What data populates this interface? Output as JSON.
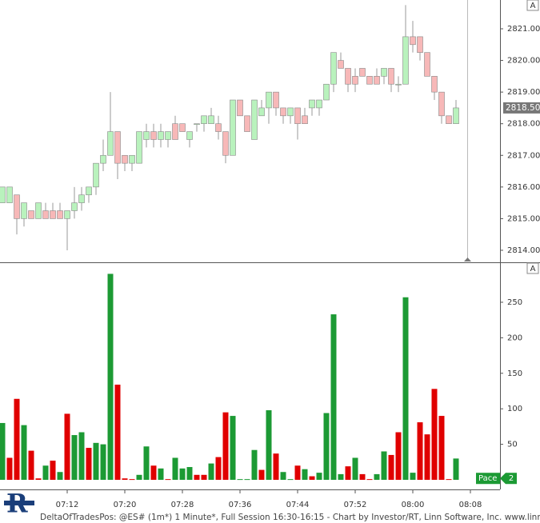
{
  "chart_data": [
    {
      "type": "candlestick",
      "ohlc": [
        [
          2815.5,
          2816.0,
          2815.5,
          2816.0
        ],
        [
          2815.5,
          2816.0,
          2815.5,
          2816.0
        ],
        [
          2815.75,
          2815.75,
          2814.5,
          2815.0
        ],
        [
          2815.0,
          2815.5,
          2814.75,
          2815.5
        ],
        [
          2815.25,
          2815.25,
          2815.0,
          2815.0
        ],
        [
          2815.0,
          2815.5,
          2815.0,
          2815.5
        ],
        [
          2815.25,
          2815.5,
          2815.0,
          2815.0
        ],
        [
          2815.25,
          2815.5,
          2815.0,
          2815.0
        ],
        [
          2815.25,
          2815.5,
          2815.0,
          2815.0
        ],
        [
          2815.0,
          2815.25,
          2814.0,
          2815.25
        ],
        [
          2815.25,
          2816.0,
          2815.0,
          2815.5
        ],
        [
          2815.5,
          2816.0,
          2815.25,
          2815.75
        ],
        [
          2815.75,
          2816.0,
          2815.5,
          2816.0
        ],
        [
          2816.0,
          2816.75,
          2815.75,
          2816.75
        ],
        [
          2816.75,
          2817.5,
          2816.5,
          2817.0
        ],
        [
          2817.0,
          2819.0,
          2817.0,
          2817.75
        ],
        [
          2817.75,
          2817.75,
          2816.25,
          2816.75
        ],
        [
          2817.0,
          2817.0,
          2816.5,
          2816.75
        ],
        [
          2816.75,
          2817.0,
          2816.5,
          2817.0
        ],
        [
          2816.75,
          2817.75,
          2816.75,
          2817.75
        ],
        [
          2817.5,
          2818.0,
          2817.25,
          2817.75
        ],
        [
          2817.75,
          2818.0,
          2817.25,
          2817.5
        ],
        [
          2817.5,
          2818.0,
          2817.25,
          2817.75
        ],
        [
          2817.5,
          2817.75,
          2817.25,
          2817.75
        ],
        [
          2818.0,
          2818.25,
          2817.5,
          2817.5
        ],
        [
          2818.0,
          2818.0,
          2817.75,
          2817.75
        ],
        [
          2817.5,
          2817.75,
          2817.25,
          2817.75
        ],
        [
          2818.0,
          2818.0,
          2817.75,
          2818.0
        ],
        [
          2818.0,
          2818.25,
          2817.75,
          2818.25
        ],
        [
          2818.0,
          2818.5,
          2818.0,
          2818.25
        ],
        [
          2818.0,
          2818.25,
          2817.5,
          2817.75
        ],
        [
          2817.75,
          2817.75,
          2816.75,
          2817.0
        ],
        [
          2817.0,
          2818.75,
          2817.0,
          2818.75
        ],
        [
          2818.75,
          2818.75,
          2818.25,
          2818.25
        ],
        [
          2818.25,
          2818.25,
          2817.75,
          2817.75
        ],
        [
          2817.5,
          2818.75,
          2817.5,
          2818.75
        ],
        [
          2818.25,
          2818.75,
          2818.25,
          2818.5
        ],
        [
          2818.5,
          2819.0,
          2818.0,
          2819.0
        ],
        [
          2819.0,
          2819.0,
          2818.25,
          2818.5
        ],
        [
          2818.5,
          2818.5,
          2818.0,
          2818.25
        ],
        [
          2818.25,
          2818.5,
          2818.0,
          2818.5
        ],
        [
          2818.5,
          2818.5,
          2817.5,
          2818.0
        ],
        [
          2818.25,
          2818.5,
          2818.0,
          2818.0
        ],
        [
          2818.5,
          2818.75,
          2818.25,
          2818.75
        ],
        [
          2818.5,
          2818.75,
          2818.25,
          2818.75
        ],
        [
          2818.75,
          2819.25,
          2818.75,
          2819.25
        ],
        [
          2819.25,
          2820.25,
          2819.0,
          2820.25
        ],
        [
          2820.0,
          2820.25,
          2819.75,
          2819.75
        ],
        [
          2819.75,
          2819.75,
          2819.0,
          2819.25
        ],
        [
          2819.5,
          2819.75,
          2819.0,
          2819.25
        ],
        [
          2819.75,
          2819.75,
          2819.5,
          2819.5
        ],
        [
          2819.5,
          2819.5,
          2819.25,
          2819.25
        ],
        [
          2819.5,
          2819.75,
          2819.25,
          2819.25
        ],
        [
          2819.5,
          2819.75,
          2819.25,
          2819.75
        ],
        [
          2819.75,
          2819.75,
          2819.0,
          2819.25
        ],
        [
          2819.25,
          2819.5,
          2819.0,
          2819.25
        ],
        [
          2819.25,
          2821.75,
          2819.25,
          2820.75
        ],
        [
          2820.75,
          2821.25,
          2820.25,
          2820.5
        ],
        [
          2820.75,
          2820.75,
          2820.0,
          2820.25
        ],
        [
          2820.25,
          2820.25,
          2819.5,
          2819.5
        ],
        [
          2819.5,
          2819.5,
          2818.75,
          2819.0
        ],
        [
          2819.0,
          2819.0,
          2818.0,
          2818.25
        ],
        [
          2818.25,
          2818.25,
          2818.0,
          2818.0
        ],
        [
          2818.0,
          2818.75,
          2818.0,
          2818.5
        ],
        null,
        null
      ],
      "up_color": "#b9f2bd",
      "down_color": "#f7b8b8",
      "wick_color": "#999999",
      "ylim": [
        2813.62,
        2821.91
      ],
      "yticks": [
        {
          "value": 2814,
          "label": "2814.00"
        },
        {
          "value": 2815,
          "label": "2815.00"
        },
        {
          "value": 2816,
          "label": "2816.00"
        },
        {
          "value": 2817,
          "label": "2817.00"
        },
        {
          "value": 2818,
          "label": "2818.00"
        },
        {
          "value": 2819,
          "label": "2819.00"
        },
        {
          "value": 2820,
          "label": "2820.00"
        },
        {
          "value": 2821,
          "label": "2821.00"
        }
      ],
      "last_price": {
        "value": 2818.5,
        "label": "2818.50"
      },
      "axis_button": "A"
    },
    {
      "type": "bar",
      "categories": [
        null,
        null,
        null,
        null,
        null,
        null,
        null,
        null,
        null,
        "07:12",
        null,
        null,
        null,
        null,
        null,
        null,
        null,
        "07:20",
        null,
        null,
        null,
        null,
        null,
        null,
        null,
        "07:28",
        null,
        null,
        null,
        null,
        null,
        null,
        null,
        "07:36",
        null,
        null,
        null,
        null,
        null,
        null,
        null,
        "07:44",
        null,
        null,
        null,
        null,
        null,
        null,
        null,
        "07:52",
        null,
        null,
        null,
        null,
        null,
        null,
        null,
        "08:00",
        null,
        null,
        null,
        null,
        null,
        null,
        null,
        "08:08"
      ],
      "values": [
        80,
        31,
        114,
        77,
        41,
        2,
        20,
        27,
        11,
        93,
        63,
        67,
        45,
        52,
        50,
        290,
        134,
        2,
        1,
        7,
        47,
        20,
        16,
        1,
        31,
        16,
        18,
        7,
        7,
        23,
        32,
        95,
        90,
        1,
        1,
        42,
        14,
        98,
        37,
        11,
        1,
        20,
        15,
        5,
        10,
        94,
        233,
        8,
        19,
        31,
        8,
        1,
        8,
        40,
        35,
        67,
        257,
        10,
        81,
        64,
        128,
        90,
        1,
        30,
        null,
        null
      ],
      "directions": [
        "up",
        "down",
        "down",
        "up",
        "down",
        "down",
        "up",
        "down",
        "up",
        "down",
        "up",
        "up",
        "down",
        "up",
        "up",
        "up",
        "down",
        "down",
        "down",
        "up",
        "up",
        "down",
        "up",
        "down",
        "up",
        "up",
        "up",
        "down",
        "down",
        "up",
        "down",
        "down",
        "up",
        "up",
        "up",
        "up",
        "down",
        "up",
        "down",
        "up",
        "up",
        "down",
        "up",
        "down",
        "up",
        "up",
        "up",
        "up",
        "down",
        "up",
        "down",
        "down",
        "up",
        "up",
        "down",
        "down",
        "up",
        "up",
        "down",
        "down",
        "down",
        "down",
        "down",
        "up",
        null,
        null
      ],
      "up_color": "#1c9a34",
      "down_color": "#e00000",
      "ylim": [
        -13.5,
        304
      ],
      "yticks": [
        50,
        100,
        150,
        200,
        250
      ],
      "pace_label": "Pace",
      "pace_value": 2,
      "axis_button": "A"
    }
  ],
  "footer": {
    "logo": "R",
    "text": "DeltaOfTradesPos: @ES# (1m*) 1 Minute*, Full Session 16:30-16:15 - Chart by Investor/RT, Linn Software, Inc. www.linnsoft.co"
  }
}
